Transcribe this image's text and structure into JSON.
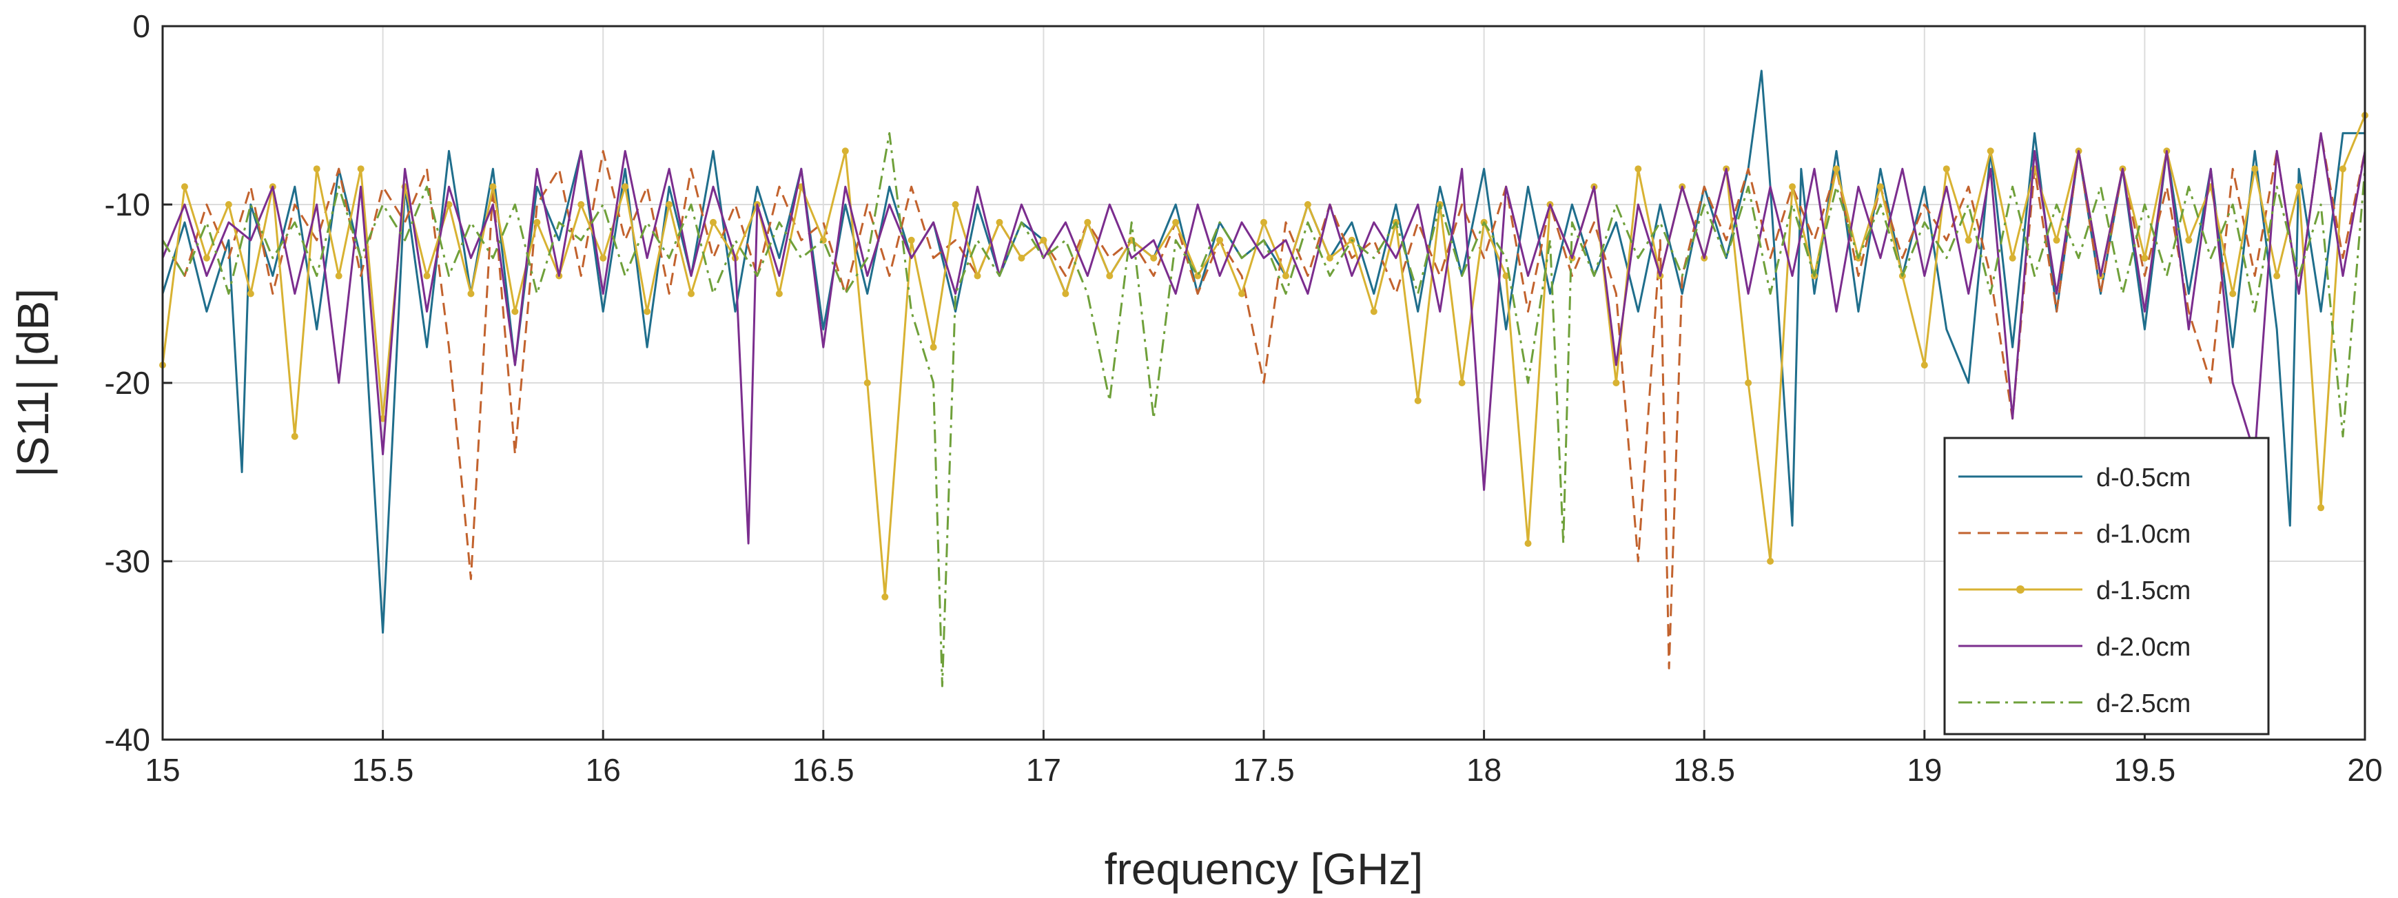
{
  "chart_data": {
    "type": "line",
    "title": "",
    "xlabel": "frequency [GHz]",
    "ylabel": "|S11| [dB]",
    "xlim": [
      15,
      20
    ],
    "ylim": [
      -40,
      0
    ],
    "xticks": [
      15,
      15.5,
      16,
      16.5,
      17,
      17.5,
      18,
      18.5,
      19,
      19.5,
      20
    ],
    "xtick_labels": [
      "15",
      "15.5",
      "16",
      "16.5",
      "17",
      "17.5",
      "18",
      "18.5",
      "19",
      "19.5",
      "20"
    ],
    "yticks": [
      0,
      -10,
      -20,
      -30,
      -40
    ],
    "ytick_labels": [
      "0",
      "-10",
      "-20",
      "-30",
      "-40"
    ],
    "grid": true,
    "legend_position": "bottom-right",
    "series": [
      {
        "name": "d-0.5cm",
        "color": "#1f6e8c",
        "style": "solid",
        "x": [
          15.0,
          15.05,
          15.1,
          15.15,
          15.18,
          15.2,
          15.25,
          15.3,
          15.35,
          15.4,
          15.45,
          15.5,
          15.55,
          15.6,
          15.65,
          15.7,
          15.75,
          15.8,
          15.85,
          15.9,
          15.95,
          16.0,
          16.05,
          16.1,
          16.15,
          16.2,
          16.25,
          16.3,
          16.35,
          16.4,
          16.45,
          16.5,
          16.55,
          16.6,
          16.65,
          16.7,
          16.75,
          16.8,
          16.85,
          16.9,
          16.95,
          17.0,
          17.05,
          17.1,
          17.15,
          17.2,
          17.25,
          17.3,
          17.35,
          17.4,
          17.45,
          17.5,
          17.55,
          17.6,
          17.65,
          17.7,
          17.75,
          17.8,
          17.85,
          17.9,
          17.95,
          18.0,
          18.05,
          18.1,
          18.15,
          18.2,
          18.25,
          18.3,
          18.35,
          18.4,
          18.45,
          18.5,
          18.55,
          18.6,
          18.63,
          18.65,
          18.7,
          18.72,
          18.75,
          18.8,
          18.85,
          18.9,
          18.95,
          19.0,
          19.05,
          19.1,
          19.15,
          19.2,
          19.25,
          19.3,
          19.35,
          19.4,
          19.45,
          19.5,
          19.55,
          19.6,
          19.65,
          19.7,
          19.75,
          19.8,
          19.83,
          19.85,
          19.9,
          19.95,
          20.0
        ],
        "y": [
          -15,
          -11,
          -16,
          -12,
          -25,
          -10,
          -14,
          -9,
          -17,
          -8,
          -13,
          -34,
          -9,
          -18,
          -7,
          -15,
          -8,
          -19,
          -9,
          -12,
          -7,
          -16,
          -8,
          -18,
          -9,
          -14,
          -7,
          -16,
          -9,
          -13,
          -8,
          -17,
          -10,
          -15,
          -9,
          -13,
          -11,
          -16,
          -10,
          -14,
          -11,
          -12,
          -15,
          -11,
          -14,
          -12,
          -13,
          -10,
          -15,
          -11,
          -13,
          -12,
          -14,
          -10,
          -13,
          -11,
          -15,
          -10,
          -16,
          -9,
          -14,
          -8,
          -17,
          -9,
          -15,
          -10,
          -14,
          -11,
          -16,
          -10,
          -15,
          -9,
          -13,
          -8,
          -2.5,
          -9,
          -28,
          -8,
          -15,
          -7,
          -16,
          -8,
          -14,
          -9,
          -17,
          -20,
          -7,
          -18,
          -6,
          -16,
          -7,
          -15,
          -8,
          -17,
          -7,
          -15,
          -8,
          -18,
          -7,
          -17,
          -28,
          -8,
          -16,
          -6,
          -6
        ]
      },
      {
        "name": "d-1.0cm",
        "color": "#c2622d",
        "style": "dashed",
        "x": [
          15.0,
          15.05,
          15.1,
          15.15,
          15.2,
          15.25,
          15.3,
          15.35,
          15.4,
          15.45,
          15.5,
          15.55,
          15.6,
          15.65,
          15.7,
          15.75,
          15.8,
          15.85,
          15.9,
          15.95,
          16.0,
          16.05,
          16.1,
          16.15,
          16.2,
          16.25,
          16.3,
          16.35,
          16.4,
          16.45,
          16.5,
          16.55,
          16.6,
          16.65,
          16.7,
          16.75,
          16.8,
          16.85,
          16.9,
          16.95,
          17.0,
          17.05,
          17.1,
          17.15,
          17.2,
          17.25,
          17.3,
          17.35,
          17.4,
          17.45,
          17.5,
          17.55,
          17.6,
          17.65,
          17.7,
          17.75,
          17.8,
          17.85,
          17.9,
          17.95,
          18.0,
          18.05,
          18.1,
          18.15,
          18.2,
          18.25,
          18.3,
          18.35,
          18.4,
          18.42,
          18.45,
          18.5,
          18.55,
          18.6,
          18.65,
          18.7,
          18.75,
          18.8,
          18.85,
          18.9,
          18.95,
          19.0,
          19.05,
          19.1,
          19.15,
          19.2,
          19.25,
          19.3,
          19.35,
          19.4,
          19.45,
          19.5,
          19.55,
          19.6,
          19.65,
          19.7,
          19.75,
          19.8,
          19.85,
          19.9,
          19.95,
          20.0
        ],
        "y": [
          -12,
          -14,
          -10,
          -13,
          -9,
          -15,
          -10,
          -12,
          -8,
          -14,
          -9,
          -11,
          -8,
          -18,
          -31,
          -9,
          -24,
          -10,
          -8,
          -14,
          -7,
          -12,
          -9,
          -15,
          -8,
          -13,
          -10,
          -14,
          -9,
          -12,
          -11,
          -15,
          -10,
          -14,
          -9,
          -13,
          -12,
          -14,
          -11,
          -13,
          -12,
          -14,
          -11,
          -13,
          -12,
          -14,
          -11,
          -15,
          -12,
          -14,
          -20,
          -11,
          -14,
          -10,
          -13,
          -12,
          -15,
          -11,
          -14,
          -10,
          -13,
          -9,
          -16,
          -10,
          -14,
          -11,
          -15,
          -30,
          -12,
          -36,
          -14,
          -9,
          -12,
          -8,
          -13,
          -9,
          -12,
          -8,
          -14,
          -9,
          -13,
          -10,
          -12,
          -9,
          -14,
          -22,
          -8,
          -16,
          -7,
          -15,
          -8,
          -14,
          -9,
          -16,
          -20,
          -8,
          -14,
          -7,
          -15,
          -6,
          -13,
          -7
        ]
      },
      {
        "name": "d-1.5cm",
        "color": "#d8b232",
        "style": "solid-marker",
        "x": [
          15.0,
          15.05,
          15.1,
          15.15,
          15.2,
          15.25,
          15.3,
          15.35,
          15.4,
          15.45,
          15.5,
          15.55,
          15.6,
          15.65,
          15.7,
          15.75,
          15.8,
          15.85,
          15.9,
          15.95,
          16.0,
          16.05,
          16.1,
          16.15,
          16.2,
          16.25,
          16.3,
          16.35,
          16.4,
          16.45,
          16.5,
          16.55,
          16.6,
          16.64,
          16.7,
          16.75,
          16.8,
          16.85,
          16.9,
          16.95,
          17.0,
          17.05,
          17.1,
          17.15,
          17.2,
          17.25,
          17.3,
          17.35,
          17.4,
          17.45,
          17.5,
          17.55,
          17.6,
          17.65,
          17.7,
          17.75,
          17.8,
          17.85,
          17.9,
          17.95,
          18.0,
          18.05,
          18.1,
          18.15,
          18.2,
          18.25,
          18.3,
          18.35,
          18.4,
          18.45,
          18.5,
          18.55,
          18.6,
          18.65,
          18.7,
          18.75,
          18.8,
          18.85,
          18.9,
          18.95,
          19.0,
          19.05,
          19.1,
          19.15,
          19.2,
          19.25,
          19.3,
          19.35,
          19.4,
          19.45,
          19.5,
          19.55,
          19.6,
          19.65,
          19.7,
          19.75,
          19.8,
          19.85,
          19.9,
          19.95,
          20.0
        ],
        "y": [
          -19,
          -9,
          -13,
          -10,
          -15,
          -9,
          -23,
          -8,
          -14,
          -8,
          -22,
          -9,
          -14,
          -10,
          -15,
          -9,
          -16,
          -11,
          -14,
          -10,
          -13,
          -9,
          -16,
          -10,
          -15,
          -11,
          -13,
          -10,
          -15,
          -9,
          -12,
          -7,
          -20,
          -32,
          -12,
          -18,
          -10,
          -14,
          -11,
          -13,
          -12,
          -15,
          -11,
          -14,
          -12,
          -13,
          -11,
          -14,
          -12,
          -15,
          -11,
          -14,
          -10,
          -13,
          -12,
          -16,
          -11,
          -21,
          -10,
          -20,
          -11,
          -14,
          -29,
          -10,
          -13,
          -9,
          -20,
          -8,
          -14,
          -9,
          -13,
          -8,
          -20,
          -30,
          -9,
          -14,
          -8,
          -13,
          -9,
          -14,
          -19,
          -8,
          -12,
          -7,
          -13,
          -8,
          -12,
          -7,
          -14,
          -8,
          -13,
          -7,
          -12,
          -9,
          -15,
          -8,
          -14,
          -9,
          -27,
          -8,
          -5
        ]
      },
      {
        "name": "d-2.0cm",
        "color": "#7b2d8e",
        "style": "solid",
        "x": [
          15.0,
          15.05,
          15.1,
          15.15,
          15.2,
          15.25,
          15.3,
          15.35,
          15.4,
          15.45,
          15.5,
          15.55,
          15.6,
          15.65,
          15.7,
          15.75,
          15.8,
          15.85,
          15.9,
          15.95,
          16.0,
          16.05,
          16.1,
          16.15,
          16.2,
          16.25,
          16.3,
          16.33,
          16.35,
          16.4,
          16.45,
          16.5,
          16.55,
          16.6,
          16.65,
          16.7,
          16.75,
          16.8,
          16.85,
          16.9,
          16.95,
          17.0,
          17.05,
          17.1,
          17.15,
          17.2,
          17.25,
          17.3,
          17.35,
          17.4,
          17.45,
          17.5,
          17.55,
          17.6,
          17.65,
          17.7,
          17.75,
          17.8,
          17.85,
          17.9,
          17.95,
          18.0,
          18.05,
          18.1,
          18.15,
          18.2,
          18.25,
          18.3,
          18.35,
          18.4,
          18.45,
          18.5,
          18.55,
          18.6,
          18.65,
          18.7,
          18.75,
          18.8,
          18.85,
          18.9,
          18.95,
          19.0,
          19.05,
          19.1,
          19.15,
          19.2,
          19.25,
          19.3,
          19.35,
          19.4,
          19.45,
          19.5,
          19.55,
          19.6,
          19.65,
          19.7,
          19.75,
          19.8,
          19.85,
          19.9,
          19.95,
          20.0
        ],
        "y": [
          -13,
          -10,
          -14,
          -11,
          -12,
          -9,
          -15,
          -10,
          -20,
          -9,
          -24,
          -8,
          -16,
          -9,
          -13,
          -10,
          -19,
          -8,
          -14,
          -7,
          -15,
          -7,
          -13,
          -8,
          -14,
          -9,
          -13,
          -29,
          -10,
          -14,
          -8,
          -18,
          -9,
          -14,
          -10,
          -13,
          -11,
          -15,
          -9,
          -14,
          -10,
          -13,
          -11,
          -14,
          -10,
          -13,
          -12,
          -15,
          -10,
          -14,
          -11,
          -13,
          -12,
          -15,
          -10,
          -14,
          -11,
          -13,
          -10,
          -16,
          -8,
          -26,
          -9,
          -14,
          -10,
          -13,
          -9,
          -19,
          -10,
          -14,
          -9,
          -13,
          -8,
          -15,
          -9,
          -14,
          -8,
          -16,
          -9,
          -13,
          -8,
          -14,
          -9,
          -15,
          -8,
          -22,
          -7,
          -15,
          -7,
          -14,
          -8,
          -16,
          -7,
          -17,
          -8,
          -20,
          -24,
          -7,
          -15,
          -6,
          -14,
          -7
        ]
      },
      {
        "name": "d-2.5cm",
        "color": "#6fa03a",
        "style": "dashdot",
        "x": [
          15.0,
          15.05,
          15.1,
          15.15,
          15.2,
          15.25,
          15.3,
          15.35,
          15.4,
          15.45,
          15.5,
          15.55,
          15.6,
          15.65,
          15.7,
          15.75,
          15.8,
          15.85,
          15.9,
          15.95,
          16.0,
          16.05,
          16.1,
          16.15,
          16.2,
          16.25,
          16.3,
          16.35,
          16.4,
          16.45,
          16.5,
          16.55,
          16.6,
          16.65,
          16.7,
          16.75,
          16.77,
          16.8,
          16.85,
          16.9,
          16.95,
          17.0,
          17.05,
          17.1,
          17.15,
          17.2,
          17.25,
          17.3,
          17.35,
          17.4,
          17.45,
          17.5,
          17.55,
          17.6,
          17.65,
          17.7,
          17.75,
          17.8,
          17.85,
          17.9,
          17.95,
          18.0,
          18.05,
          18.1,
          18.15,
          18.18,
          18.2,
          18.25,
          18.3,
          18.35,
          18.4,
          18.45,
          18.5,
          18.55,
          18.6,
          18.65,
          18.7,
          18.75,
          18.8,
          18.85,
          18.9,
          18.95,
          19.0,
          19.05,
          19.1,
          19.15,
          19.2,
          19.25,
          19.3,
          19.35,
          19.4,
          19.45,
          19.5,
          19.55,
          19.6,
          19.65,
          19.7,
          19.75,
          19.8,
          19.85,
          19.9,
          19.95,
          20.0
        ],
        "y": [
          -12,
          -14,
          -11,
          -15,
          -10,
          -13,
          -11,
          -14,
          -9,
          -13,
          -10,
          -12,
          -9,
          -14,
          -11,
          -13,
          -10,
          -15,
          -11,
          -12,
          -10,
          -14,
          -11,
          -13,
          -10,
          -15,
          -12,
          -14,
          -11,
          -13,
          -12,
          -15,
          -13,
          -6,
          -16,
          -20,
          -37,
          -15,
          -12,
          -14,
          -11,
          -13,
          -12,
          -15,
          -21,
          -11,
          -22,
          -12,
          -14,
          -11,
          -13,
          -12,
          -15,
          -11,
          -14,
          -12,
          -13,
          -11,
          -15,
          -10,
          -14,
          -11,
          -13,
          -20,
          -12,
          -29,
          -11,
          -14,
          -10,
          -13,
          -11,
          -14,
          -10,
          -13,
          -9,
          -15,
          -10,
          -14,
          -9,
          -13,
          -10,
          -14,
          -11,
          -13,
          -10,
          -15,
          -9,
          -14,
          -10,
          -13,
          -9,
          -15,
          -10,
          -14,
          -9,
          -13,
          -10,
          -16,
          -9,
          -14,
          -10,
          -23,
          -8
        ]
      }
    ]
  }
}
